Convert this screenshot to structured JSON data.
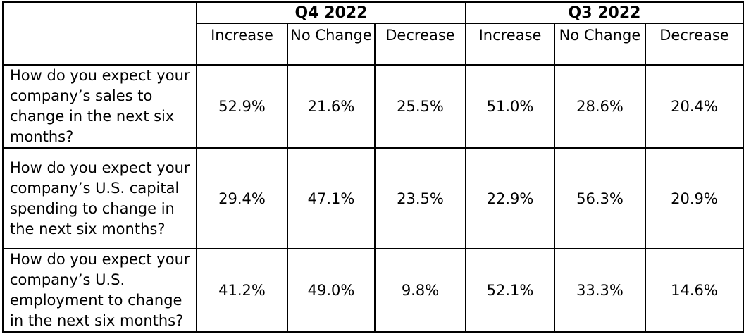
{
  "table": {
    "periods": [
      "Q4 2022",
      "Q3 2022"
    ],
    "columns": [
      "Increase",
      "No Change",
      "Decrease",
      "Increase",
      "No Change",
      "Decrease"
    ],
    "rows": [
      {
        "question": "How do you expect your company’s sales to change in the next six months?",
        "values": [
          "52.9%",
          "21.6%",
          "25.5%",
          "51.0%",
          "28.6%",
          "20.4%"
        ]
      },
      {
        "question": "How do you expect your company’s U.S. capital spending to change in the next six months?",
        "values": [
          "29.4%",
          "47.1%",
          "23.5%",
          "22.9%",
          "56.3%",
          "20.9%"
        ]
      },
      {
        "question": "How do you expect your company’s U.S. employment to change in the next six months?",
        "values": [
          "41.2%",
          "49.0%",
          "9.8%",
          "52.1%",
          "33.3%",
          "14.6%"
        ]
      }
    ]
  }
}
